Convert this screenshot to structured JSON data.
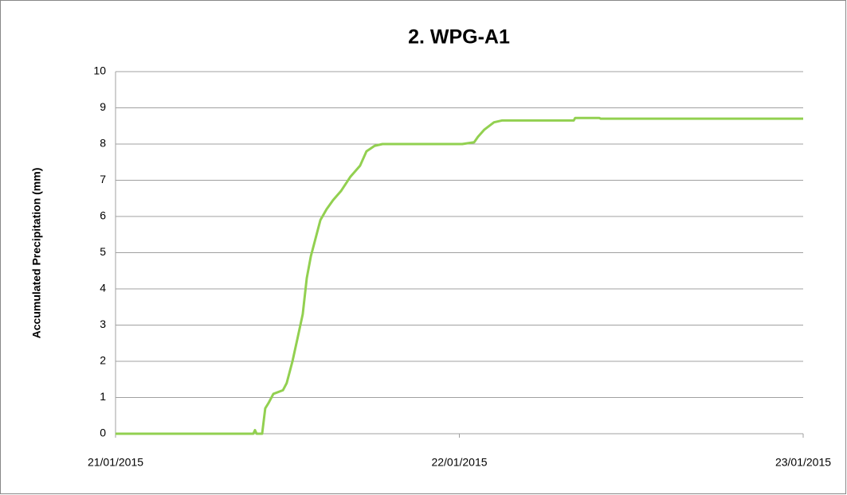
{
  "chart_data": {
    "type": "line",
    "title": "2. WPG-A1",
    "y_label": "Accumulated  Precipitation (mm)",
    "x": [
      "2015-01-21T00:00",
      "2015-01-21T09:37",
      "2015-01-21T09:44",
      "2015-01-21T09:51",
      "2015-01-21T10:14",
      "2015-01-21T10:27",
      "2015-01-21T10:41",
      "2015-01-21T11:01",
      "2015-01-21T11:41",
      "2015-01-21T11:57",
      "2015-01-21T12:21",
      "2015-01-21T12:41",
      "2015-01-21T13:04",
      "2015-01-21T13:21",
      "2015-01-21T13:38",
      "2015-01-21T13:54",
      "2015-01-21T14:18",
      "2015-01-21T14:44",
      "2015-01-21T15:11",
      "2015-01-21T15:44",
      "2015-01-21T16:24",
      "2015-01-21T17:04",
      "2015-01-21T17:31",
      "2015-01-21T18:05",
      "2015-01-21T18:38",
      "2015-01-22T00:12",
      "2015-01-22T01:02",
      "2015-01-22T01:18",
      "2015-01-22T01:45",
      "2015-01-22T02:25",
      "2015-01-22T02:58",
      "2015-01-22T07:59",
      "2015-01-22T08:05",
      "2015-01-22T09:46",
      "2015-01-22T09:52",
      "2015-01-23T00:00"
    ],
    "series": [
      {
        "name": "WPG-A1",
        "color": "#92d050",
        "values": [
          0,
          0,
          0.1,
          0,
          0,
          0.7,
          0.85,
          1.1,
          1.2,
          1.4,
          2.0,
          2.6,
          3.3,
          4.3,
          4.9,
          5.3,
          5.9,
          6.2,
          6.45,
          6.7,
          7.1,
          7.4,
          7.8,
          7.95,
          8.0,
          8.0,
          8.05,
          8.2,
          8.4,
          8.6,
          8.65,
          8.65,
          8.72,
          8.72,
          8.7,
          8.7
        ]
      }
    ],
    "xlim": [
      "2015-01-21T00:00",
      "2015-01-23T00:00"
    ],
    "xticks": [
      {
        "value": "2015-01-21T00:00",
        "label": "21/01/2015"
      },
      {
        "value": "2015-01-22T00:00",
        "label": "22/01/2015"
      },
      {
        "value": "2015-01-23T00:00",
        "label": "23/01/2015"
      }
    ],
    "ylim": [
      0,
      10
    ],
    "yticks": [
      0,
      1,
      2,
      3,
      4,
      5,
      6,
      7,
      8,
      9,
      10
    ],
    "grid": true
  }
}
